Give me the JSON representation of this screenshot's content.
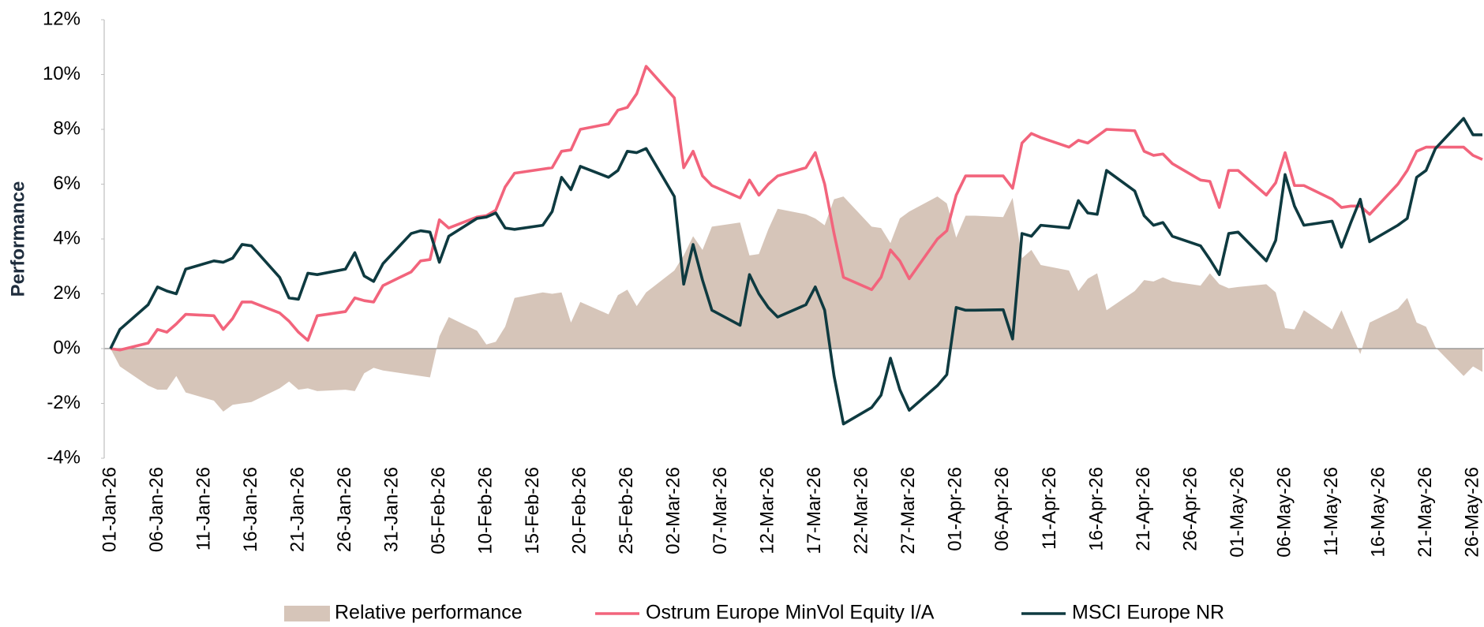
{
  "chart_data": {
    "type": "line",
    "y_label": "Performance",
    "x": [
      "01-Jan-26",
      "02-Jan-26",
      "05-Jan-26",
      "06-Jan-26",
      "07-Jan-26",
      "08-Jan-26",
      "09-Jan-26",
      "12-Jan-26",
      "13-Jan-26",
      "14-Jan-26",
      "15-Jan-26",
      "16-Jan-26",
      "19-Jan-26",
      "20-Jan-26",
      "21-Jan-26",
      "22-Jan-26",
      "23-Jan-26",
      "26-Jan-26",
      "27-Jan-26",
      "28-Jan-26",
      "29-Jan-26",
      "30-Jan-26",
      "02-Feb-26",
      "03-Feb-26",
      "04-Feb-26",
      "05-Feb-26",
      "06-Feb-26",
      "09-Feb-26",
      "10-Feb-26",
      "11-Feb-26",
      "12-Feb-26",
      "13-Feb-26",
      "16-Feb-26",
      "17-Feb-26",
      "18-Feb-26",
      "19-Feb-26",
      "20-Feb-26",
      "23-Feb-26",
      "24-Feb-26",
      "25-Feb-26",
      "26-Feb-26",
      "27-Feb-26",
      "02-Mar-26",
      "03-Mar-26",
      "04-Mar-26",
      "05-Mar-26",
      "06-Mar-26",
      "09-Mar-26",
      "10-Mar-26",
      "11-Mar-26",
      "12-Mar-26",
      "13-Mar-26",
      "16-Mar-26",
      "17-Mar-26",
      "18-Mar-26",
      "19-Mar-26",
      "20-Mar-26",
      "23-Mar-26",
      "24-Mar-26",
      "25-Mar-26",
      "26-Mar-26",
      "27-Mar-26",
      "30-Mar-26",
      "31-Mar-26",
      "01-Apr-26",
      "02-Apr-26",
      "03-Apr-26",
      "06-Apr-26",
      "07-Apr-26",
      "08-Apr-26",
      "09-Apr-26",
      "10-Apr-26",
      "13-Apr-26",
      "14-Apr-26",
      "15-Apr-26",
      "16-Apr-26",
      "17-Apr-26",
      "20-Apr-26",
      "21-Apr-26",
      "22-Apr-26",
      "23-Apr-26",
      "24-Apr-26",
      "27-Apr-26",
      "28-Apr-26",
      "29-Apr-26",
      "30-Apr-26",
      "01-May-26",
      "04-May-26",
      "05-May-26",
      "06-May-26",
      "07-May-26",
      "08-May-26",
      "11-May-26",
      "12-May-26",
      "13-May-26",
      "14-May-26",
      "15-May-26",
      "18-May-26",
      "19-May-26",
      "20-May-26",
      "21-May-26",
      "22-May-26",
      "25-May-26",
      "26-May-26",
      "27-May-26"
    ],
    "series": [
      {
        "name": "Relative performance",
        "kind": "area",
        "color": "#d6c5b9",
        "values": [
          0,
          -0.65,
          -1.35,
          -1.5,
          -1.5,
          -1.0,
          -1.6,
          -1.9,
          -2.3,
          -2.05,
          -2.0,
          -1.95,
          -1.45,
          -1.2,
          -1.5,
          -1.45,
          -1.55,
          -1.5,
          -1.55,
          -0.9,
          -0.7,
          -0.8,
          -0.95,
          -1.0,
          -1.05,
          0.45,
          1.15,
          0.65,
          0.15,
          0.25,
          0.8,
          1.85,
          2.05,
          2.0,
          2.05,
          0.95,
          1.7,
          1.25,
          1.95,
          2.15,
          1.55,
          2.05,
          2.85,
          3.4,
          4.1,
          3.6,
          4.45,
          4.6,
          3.4,
          3.45,
          4.35,
          5.1,
          4.9,
          4.75,
          4.5,
          5.45,
          5.55,
          4.45,
          4.4,
          3.85,
          4.75,
          5.0,
          5.55,
          5.3,
          4.05,
          4.85,
          4.85,
          4.8,
          5.5,
          3.3,
          3.6,
          3.05,
          2.85,
          2.1,
          2.55,
          2.75,
          1.4,
          2.1,
          2.5,
          2.45,
          2.6,
          2.45,
          2.3,
          2.75,
          2.35,
          2.2,
          2.25,
          2.35,
          2.05,
          0.75,
          0.7,
          1.4,
          0.7,
          1.4,
          0.6,
          -0.2,
          0.95,
          1.45,
          1.85,
          0.95,
          0.8,
          0.05,
          -1.0,
          -0.65,
          -0.85
        ]
      },
      {
        "name": "Ostrum Europe MinVol Equity I/A",
        "kind": "line",
        "color": "#f2647c",
        "values": [
          0,
          -0.05,
          0.2,
          0.7,
          0.6,
          0.9,
          1.25,
          1.2,
          0.7,
          1.1,
          1.7,
          1.7,
          1.3,
          1.0,
          0.6,
          0.3,
          1.2,
          1.35,
          1.85,
          1.75,
          1.7,
          2.3,
          2.8,
          3.2,
          3.25,
          4.7,
          4.4,
          4.8,
          4.85,
          5.05,
          5.9,
          6.4,
          6.55,
          6.6,
          7.2,
          7.25,
          8.0,
          8.2,
          8.7,
          8.8,
          9.3,
          10.3,
          9.15,
          6.6,
          7.2,
          6.3,
          5.95,
          5.5,
          6.15,
          5.6,
          6.0,
          6.3,
          6.6,
          7.15,
          6.0,
          4.2,
          2.6,
          2.15,
          2.6,
          3.6,
          3.2,
          2.55,
          4.0,
          4.3,
          5.6,
          6.3,
          6.3,
          6.3,
          5.85,
          7.5,
          7.85,
          7.7,
          7.35,
          7.6,
          7.5,
          7.75,
          8.0,
          7.95,
          7.2,
          7.05,
          7.1,
          6.75,
          6.15,
          6.1,
          5.15,
          6.5,
          6.5,
          5.6,
          6.05,
          7.15,
          5.95,
          5.95,
          5.45,
          5.15,
          5.2,
          5.2,
          4.9,
          6.0,
          6.5,
          7.2,
          7.35,
          7.35,
          7.35,
          7.05,
          6.9
        ]
      },
      {
        "name": "MSCI Europe NR",
        "kind": "line",
        "color": "#0e3a40",
        "values": [
          0,
          0.7,
          1.6,
          2.25,
          2.1,
          2.0,
          2.9,
          3.2,
          3.15,
          3.3,
          3.8,
          3.75,
          2.6,
          1.85,
          1.8,
          2.75,
          2.7,
          2.9,
          3.5,
          2.65,
          2.45,
          3.1,
          4.2,
          4.3,
          4.25,
          3.15,
          4.1,
          4.75,
          4.8,
          4.95,
          4.4,
          4.35,
          4.5,
          5.0,
          6.25,
          5.8,
          6.65,
          6.25,
          6.5,
          7.2,
          7.15,
          7.3,
          5.55,
          2.35,
          3.8,
          2.5,
          1.4,
          0.85,
          2.7,
          2.0,
          1.5,
          1.15,
          1.6,
          2.25,
          1.4,
          -1.0,
          -2.75,
          -2.15,
          -1.7,
          -0.35,
          -1.5,
          -2.25,
          -1.35,
          -0.95,
          1.5,
          1.4,
          1.4,
          1.42,
          0.35,
          4.2,
          4.1,
          4.5,
          4.4,
          5.4,
          4.95,
          4.9,
          6.5,
          5.75,
          4.85,
          4.5,
          4.6,
          4.1,
          3.75,
          3.25,
          2.7,
          4.2,
          4.25,
          3.2,
          3.95,
          6.35,
          5.2,
          4.5,
          4.65,
          3.7,
          4.6,
          5.45,
          3.9,
          4.5,
          4.75,
          6.25,
          6.5,
          7.3,
          8.4,
          7.8,
          7.8
        ]
      }
    ],
    "xlim": [
      "01-Jan-26",
      "27-May-26"
    ],
    "xticks": [
      "01-Jan-26",
      "06-Jan-26",
      "11-Jan-26",
      "16-Jan-26",
      "21-Jan-26",
      "26-Jan-26",
      "31-Jan-26",
      "05-Feb-26",
      "10-Feb-26",
      "15-Feb-26",
      "20-Feb-26",
      "25-Feb-26",
      "02-Mar-26",
      "07-Mar-26",
      "12-Mar-26",
      "17-Mar-26",
      "22-Mar-26",
      "27-Mar-26",
      "01-Apr-26",
      "06-Apr-26",
      "11-Apr-26",
      "16-Apr-26",
      "21-Apr-26",
      "26-Apr-26",
      "01-May-26",
      "06-May-26",
      "11-May-26",
      "16-May-26",
      "21-May-26",
      "26-May-26"
    ],
    "ylim": [
      -4,
      12
    ],
    "yticks": [
      {
        "value": -4,
        "label": "-4%"
      },
      {
        "value": -2,
        "label": "-2%"
      },
      {
        "value": 0,
        "label": "0%"
      },
      {
        "value": 2,
        "label": "2%"
      },
      {
        "value": 4,
        "label": "4%"
      },
      {
        "value": 6,
        "label": "6%"
      },
      {
        "value": 8,
        "label": "8%"
      },
      {
        "value": 10,
        "label": "10%"
      },
      {
        "value": 12,
        "label": "12%"
      }
    ],
    "grid": false,
    "legend": "bottom"
  }
}
